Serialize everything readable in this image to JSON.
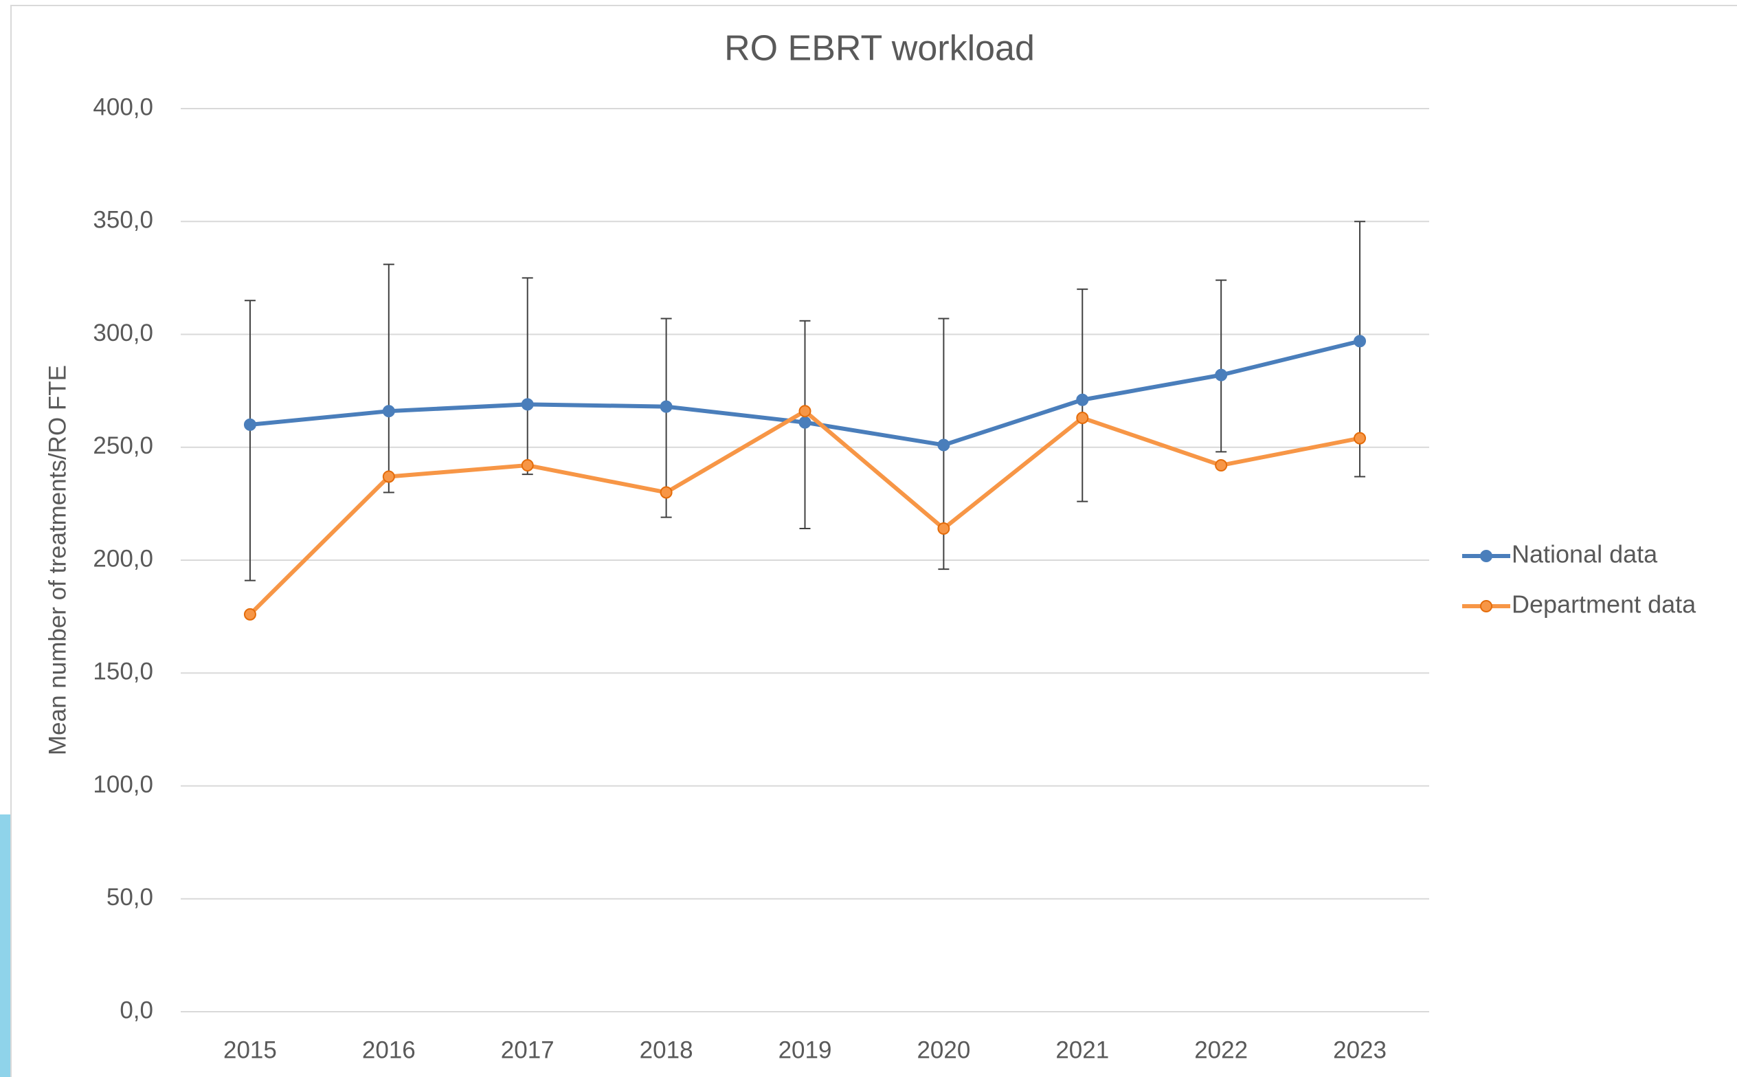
{
  "chart_data": {
    "type": "line",
    "title": "RO EBRT workload",
    "y_label": "Mean number of treatments/RO FTE",
    "categories": [
      "2015",
      "2016",
      "2017",
      "2018",
      "2019",
      "2020",
      "2021",
      "2022",
      "2023"
    ],
    "series": [
      {
        "name": "National data",
        "color": "#4a7ebb",
        "values": [
          260,
          266,
          269,
          268,
          261,
          251,
          271,
          282,
          297
        ],
        "error_high": [
          315,
          331,
          325,
          307,
          306,
          307,
          320,
          324,
          350
        ],
        "error_low": [
          191,
          230,
          238,
          219,
          214,
          196,
          226,
          248,
          237
        ]
      },
      {
        "name": "Department data",
        "color": "#f79646",
        "values": [
          176,
          237,
          242,
          230,
          266,
          214,
          263,
          242,
          254
        ]
      }
    ],
    "ylim": [
      0,
      400
    ],
    "yticks": [
      {
        "value": 0,
        "label": "0,0"
      },
      {
        "value": 50,
        "label": "50,0"
      },
      {
        "value": 100,
        "label": "100,0"
      },
      {
        "value": 150,
        "label": "150,0"
      },
      {
        "value": 200,
        "label": "200,0"
      },
      {
        "value": 250,
        "label": "250,0"
      },
      {
        "value": 300,
        "label": "300,0"
      },
      {
        "value": 350,
        "label": "350,0"
      },
      {
        "value": 400,
        "label": "400,0"
      }
    ],
    "grid": true,
    "legend": "right"
  }
}
